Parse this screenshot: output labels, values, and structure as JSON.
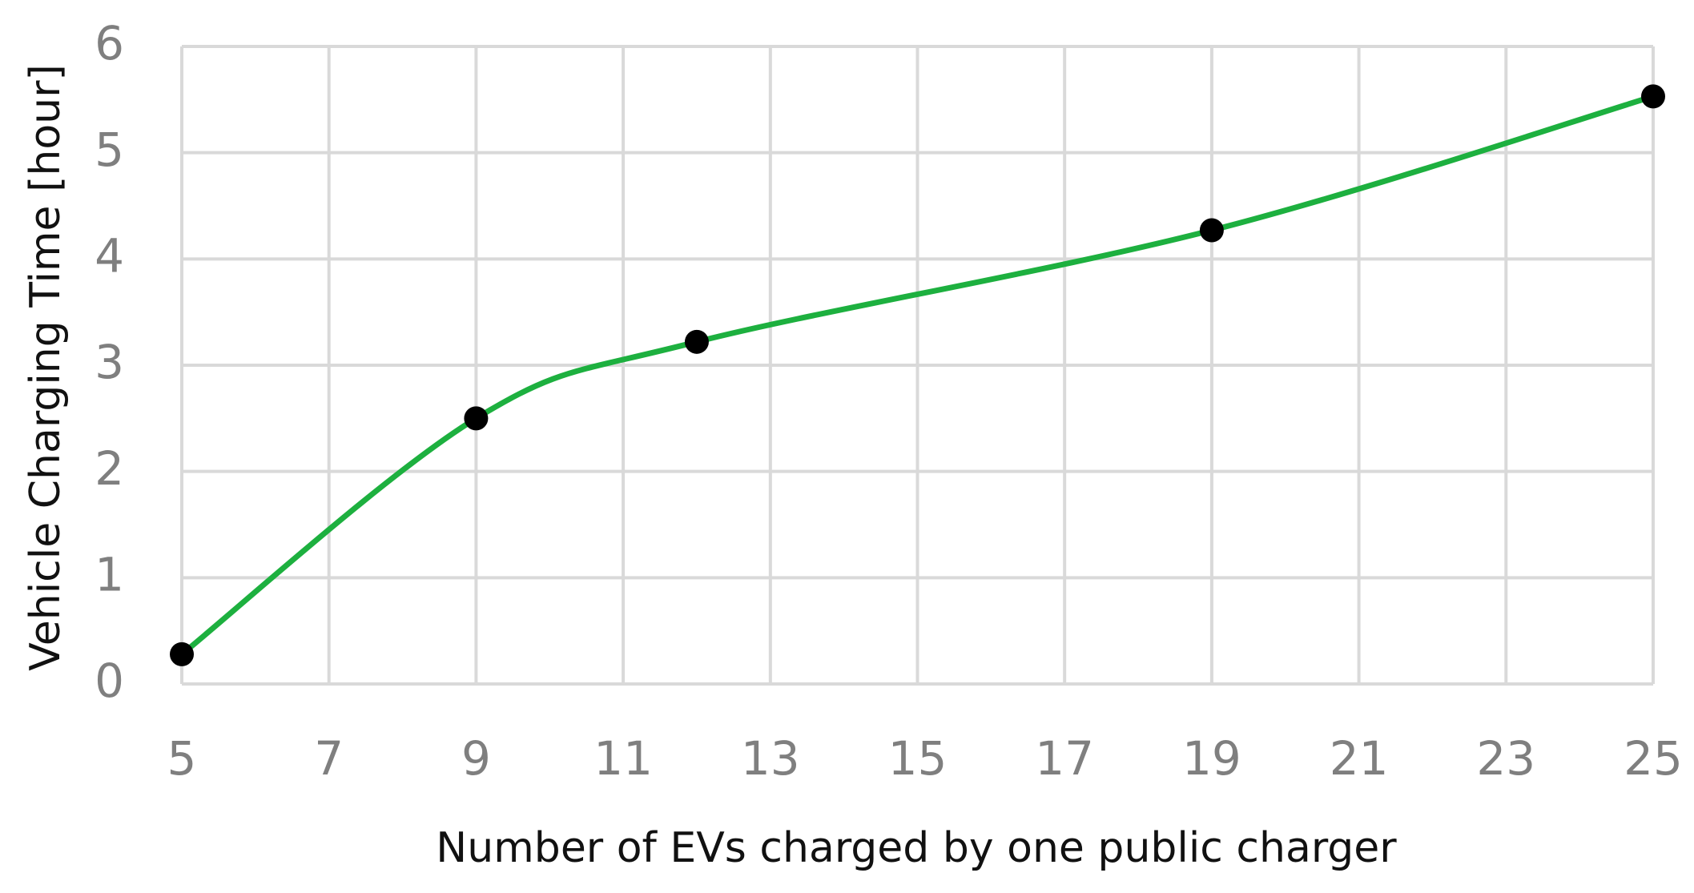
{
  "chart_data": {
    "type": "scatter",
    "x_label": "Number of EVs charged by one public charger",
    "y_label": "Vehicle Charging Time [hour]",
    "x": [
      5,
      9,
      12,
      19,
      25
    ],
    "y": [
      0.28,
      2.5,
      3.22,
      4.27,
      5.53
    ],
    "line_color": "#1db03f",
    "marker_color": "#000000",
    "smooth": true,
    "xlim": [
      5,
      25
    ],
    "xticks": [
      5,
      7,
      9,
      11,
      13,
      15,
      17,
      19,
      21,
      23,
      25
    ],
    "ylim": [
      0,
      6
    ],
    "yticks": [
      0,
      1,
      2,
      3,
      4,
      5,
      6
    ],
    "grid": true
  }
}
